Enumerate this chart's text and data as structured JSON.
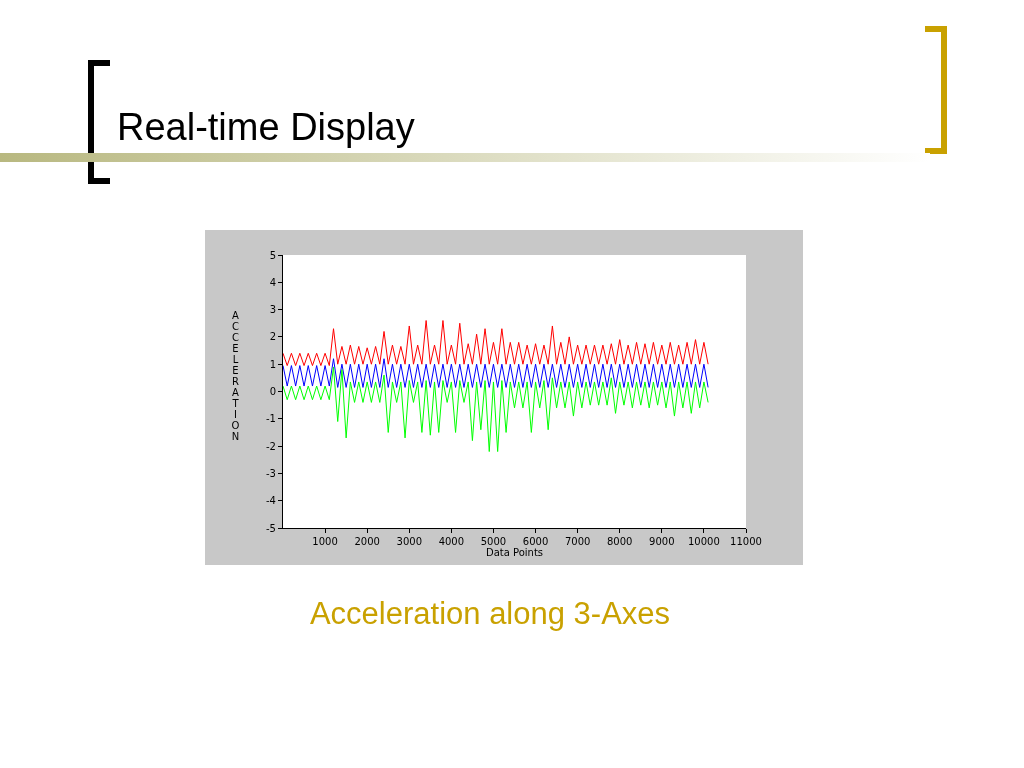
{
  "chart_data": {
    "type": "line",
    "title": "Real-time Display",
    "xlabel": "Data Points",
    "ylabel": "ACCELERATION",
    "annotations": [
      "Acceleration along 3-Axes"
    ],
    "x": [
      0,
      100,
      200,
      300,
      400,
      500,
      600,
      700,
      800,
      900,
      1000,
      1100,
      1200,
      1300,
      1400,
      1500,
      1600,
      1700,
      1800,
      1900,
      2000,
      2100,
      2200,
      2300,
      2400,
      2500,
      2600,
      2700,
      2800,
      2900,
      3000,
      3100,
      3200,
      3300,
      3400,
      3500,
      3600,
      3700,
      3800,
      3900,
      4000,
      4100,
      4200,
      4300,
      4400,
      4500,
      4600,
      4700,
      4800,
      4900,
      5000,
      5100,
      5200,
      5300,
      5400,
      5500,
      5600,
      5700,
      5800,
      5900,
      6000,
      6100,
      6200,
      6300,
      6400,
      6500,
      6600,
      6700,
      6800,
      6900,
      7000,
      7100,
      7200,
      7300,
      7400,
      7500,
      7600,
      7700,
      7800,
      7900,
      8000,
      8100,
      8200,
      8300,
      8400,
      8500,
      8600,
      8700,
      8800,
      8900,
      9000,
      9100,
      9200,
      9300,
      9400,
      9500,
      9600,
      9700,
      9800,
      9900,
      10000,
      10100
    ],
    "series": [
      {
        "color": "#ff0000",
        "values": [
          1.4,
          0.95,
          1.4,
          0.95,
          1.4,
          0.95,
          1.4,
          0.95,
          1.4,
          0.95,
          1.4,
          0.95,
          2.3,
          1.0,
          1.65,
          1.0,
          1.7,
          1.0,
          1.65,
          1.0,
          1.6,
          1.0,
          1.65,
          1.0,
          2.2,
          1.0,
          1.7,
          1.0,
          1.65,
          1.0,
          2.4,
          1.0,
          1.7,
          1.0,
          2.6,
          1.0,
          1.7,
          1.0,
          2.6,
          1.0,
          1.7,
          1.0,
          2.5,
          1.0,
          1.75,
          1.0,
          2.1,
          1.0,
          2.3,
          1.0,
          1.8,
          1.0,
          2.3,
          1.0,
          1.8,
          1.0,
          1.8,
          1.0,
          1.7,
          1.0,
          1.75,
          1.0,
          1.7,
          1.0,
          2.4,
          1.0,
          1.8,
          1.0,
          2.0,
          1.0,
          1.7,
          1.0,
          1.7,
          1.0,
          1.7,
          1.0,
          1.7,
          1.0,
          1.75,
          1.0,
          1.9,
          1.0,
          1.7,
          1.0,
          1.8,
          1.0,
          1.75,
          1.0,
          1.8,
          1.0,
          1.7,
          1.0,
          1.8,
          1.0,
          1.7,
          1.0,
          1.8,
          1.0,
          1.9,
          1.0,
          1.8,
          1.0
        ]
      },
      {
        "color": "#0000ff",
        "values": [
          0.95,
          0.2,
          0.95,
          0.2,
          0.95,
          0.2,
          0.95,
          0.2,
          0.95,
          0.2,
          0.95,
          0.2,
          1.2,
          0.15,
          1.0,
          0.15,
          1.0,
          0.15,
          1.0,
          0.15,
          1.0,
          0.15,
          1.0,
          0.15,
          1.2,
          0.15,
          1.0,
          0.15,
          1.0,
          0.15,
          1.0,
          0.15,
          1.0,
          0.15,
          1.0,
          0.15,
          1.0,
          0.15,
          1.0,
          0.15,
          1.0,
          0.15,
          1.0,
          0.15,
          1.0,
          0.15,
          1.0,
          0.15,
          1.0,
          0.15,
          1.0,
          0.15,
          1.0,
          0.15,
          1.0,
          0.15,
          1.0,
          0.15,
          1.0,
          0.15,
          1.0,
          0.15,
          1.0,
          0.15,
          1.0,
          0.15,
          1.0,
          0.15,
          1.0,
          0.15,
          1.0,
          0.15,
          1.0,
          0.15,
          1.0,
          0.15,
          1.0,
          0.15,
          1.0,
          0.15,
          1.0,
          0.15,
          1.0,
          0.15,
          1.0,
          0.15,
          1.0,
          0.15,
          1.0,
          0.15,
          1.0,
          0.15,
          1.0,
          0.15,
          1.0,
          0.15,
          1.0,
          0.15,
          1.0,
          0.15,
          1.0,
          0.15
        ]
      },
      {
        "color": "#00ff00",
        "values": [
          0.2,
          -0.3,
          0.2,
          -0.3,
          0.2,
          -0.3,
          0.2,
          -0.3,
          0.2,
          -0.3,
          0.2,
          -0.3,
          0.9,
          -1.1,
          0.8,
          -1.7,
          0.35,
          -0.4,
          0.35,
          -0.4,
          0.35,
          -0.4,
          0.35,
          -0.4,
          0.6,
          -1.5,
          0.35,
          -0.4,
          0.35,
          -1.7,
          0.4,
          -0.4,
          0.35,
          -1.5,
          0.4,
          -1.6,
          0.35,
          -1.5,
          0.4,
          -0.4,
          0.35,
          -1.5,
          0.4,
          -0.4,
          0.35,
          -1.8,
          0.35,
          -1.4,
          0.4,
          -2.2,
          0.35,
          -2.2,
          0.4,
          -1.5,
          0.35,
          -0.6,
          0.35,
          -0.6,
          0.35,
          -1.5,
          0.35,
          -0.6,
          0.4,
          -1.4,
          0.5,
          -0.6,
          0.35,
          -0.6,
          0.35,
          -0.9,
          0.35,
          -0.6,
          0.35,
          -0.5,
          0.35,
          -0.5,
          0.35,
          -0.5,
          0.5,
          -0.8,
          0.35,
          -0.5,
          0.35,
          -0.6,
          0.35,
          -0.5,
          0.35,
          -0.6,
          0.35,
          -0.5,
          0.35,
          -0.6,
          0.35,
          -0.9,
          0.35,
          -0.6,
          0.35,
          -0.8,
          0.35,
          -0.6,
          0.35,
          -0.4
        ]
      }
    ],
    "xlim": [
      0,
      11000
    ],
    "xticks": [
      1000,
      2000,
      3000,
      4000,
      5000,
      6000,
      7000,
      8000,
      9000,
      10000,
      11000
    ],
    "ylim": [
      -5,
      5
    ],
    "yticks": [
      -5,
      -4,
      -3,
      -2,
      -1,
      0,
      1,
      2,
      3,
      4,
      5
    ]
  }
}
